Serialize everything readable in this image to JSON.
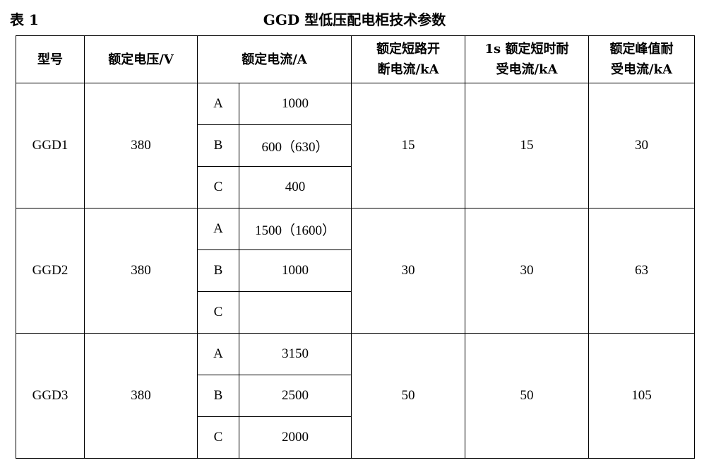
{
  "caption": "表 1",
  "title": "GGD 型低压配电柜技术参数",
  "headers": {
    "model": "型号",
    "voltage": "额定电压/V",
    "current": "额定电流/A",
    "breaking_1": "额定短路开",
    "breaking_2": "断电流/kA",
    "short_time_1": "1s 额定短时耐",
    "short_time_2": "受电流/kA",
    "peak_1": "额定峰值耐",
    "peak_2": "受电流/kA"
  },
  "rows": [
    {
      "model": "GGD1",
      "voltage": "380",
      "currents": [
        {
          "grade": "A",
          "value": "1000"
        },
        {
          "grade": "B",
          "value": "600（630）"
        },
        {
          "grade": "C",
          "value": "400"
        }
      ],
      "breaking": "15",
      "short_time": "15",
      "peak": "30"
    },
    {
      "model": "GGD2",
      "voltage": "380",
      "currents": [
        {
          "grade": "A",
          "value": "1500（1600）"
        },
        {
          "grade": "B",
          "value": "1000"
        },
        {
          "grade": "C",
          "value": ""
        }
      ],
      "breaking": "30",
      "short_time": "30",
      "peak": "63"
    },
    {
      "model": "GGD3",
      "voltage": "380",
      "currents": [
        {
          "grade": "A",
          "value": "3150"
        },
        {
          "grade": "B",
          "value": "2500"
        },
        {
          "grade": "C",
          "value": "2000"
        }
      ],
      "breaking": "50",
      "short_time": "50",
      "peak": "105"
    }
  ]
}
